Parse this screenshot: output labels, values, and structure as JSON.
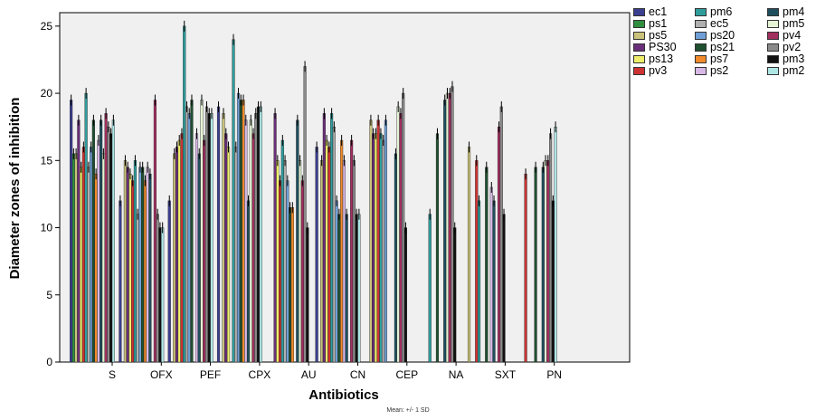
{
  "chart_data": {
    "type": "bar",
    "xlabel": "Antibiotics",
    "ylabel": "Diameter zones of inhibition",
    "footnote": "Mean: +/- 1 SD",
    "ylim": [
      0,
      26
    ],
    "yticks": [
      0,
      5,
      10,
      15,
      20,
      25
    ],
    "categories": [
      "S",
      "OFX",
      "PEF",
      "CPX",
      "AU",
      "CN",
      "CEP",
      "NA",
      "SXT",
      "PN"
    ],
    "error_bars": "+/- 1 SD",
    "series": [
      {
        "name": "ec1",
        "color": "#3b3f8f",
        "values": [
          19.5,
          12,
          12,
          19,
          0,
          16,
          0,
          0,
          0,
          0
        ]
      },
      {
        "name": "ps1",
        "color": "#2f8f3f",
        "values": [
          15.5,
          0,
          0,
          0,
          0,
          0,
          0,
          0,
          0,
          0
        ]
      },
      {
        "name": "ps5",
        "color": "#c9c27a",
        "values": [
          15.5,
          15,
          15.5,
          18.5,
          0,
          15,
          18,
          0,
          16,
          0
        ]
      },
      {
        "name": "PS30",
        "color": "#6a2f7a",
        "values": [
          18,
          14.5,
          16,
          17,
          18.5,
          18.5,
          17,
          0,
          0,
          0
        ]
      },
      {
        "name": "ps13",
        "color": "#eeee6a",
        "values": [
          14.5,
          14,
          16.5,
          16,
          15,
          16.5,
          17,
          0,
          0,
          0
        ]
      },
      {
        "name": "pv3",
        "color": "#cc3333",
        "values": [
          16,
          13.5,
          17,
          0,
          13.5,
          16,
          18,
          0,
          15,
          14
        ]
      },
      {
        "name": "pm6",
        "color": "#2f9c9c",
        "values": [
          20,
          15,
          25,
          24,
          16.5,
          18.5,
          17,
          11,
          12,
          0
        ]
      },
      {
        "name": "ec5",
        "color": "#b0b0b0",
        "values": [
          14.5,
          11,
          19,
          16,
          15,
          17.5,
          16.5,
          0,
          0,
          0
        ]
      },
      {
        "name": "ps20",
        "color": "#6f9fd6",
        "values": [
          16,
          14.5,
          18.5,
          20,
          13.5,
          12,
          18,
          0,
          0,
          0
        ]
      },
      {
        "name": "ps21",
        "color": "#1f4f2f",
        "values": [
          18,
          14.5,
          19.5,
          19.5,
          11.5,
          11,
          0,
          17,
          14.5,
          14.5
        ]
      },
      {
        "name": "ps7",
        "color": "#f08a2a",
        "values": [
          14,
          13.5,
          0,
          19.5,
          11.5,
          16.5,
          0,
          0,
          0,
          0
        ]
      },
      {
        "name": "ps2",
        "color": "#d7b8e6",
        "values": [
          16.5,
          14.5,
          17,
          18,
          0,
          15,
          0,
          0,
          13,
          0
        ]
      },
      {
        "name": "pm4",
        "color": "#1f4f5f",
        "values": [
          18,
          14,
          15.5,
          12,
          18,
          11,
          15.5,
          19.5,
          12,
          14.5
        ]
      },
      {
        "name": "pm5",
        "color": "#e4f4d4",
        "values": [
          15.5,
          0,
          19.5,
          18,
          15,
          0,
          19,
          20,
          0,
          15
        ]
      },
      {
        "name": "pv4",
        "color": "#a12f5f",
        "values": [
          18.5,
          19.5,
          16.5,
          17,
          13.5,
          16.5,
          18.5,
          20,
          17.5,
          15
        ]
      },
      {
        "name": "pv2",
        "color": "#8a8a8a",
        "values": [
          17.5,
          11,
          19,
          18.5,
          22,
          15,
          20,
          20.5,
          19,
          17
        ]
      },
      {
        "name": "pm3",
        "color": "#111111",
        "values": [
          17,
          10,
          18.5,
          19,
          10,
          11,
          10,
          10,
          11,
          12
        ]
      },
      {
        "name": "pm2",
        "color": "#aee6e6",
        "values": [
          18,
          10,
          18.5,
          19,
          0,
          11,
          0,
          0,
          0,
          17.5
        ]
      }
    ],
    "legend_position": "right",
    "grid": false
  }
}
